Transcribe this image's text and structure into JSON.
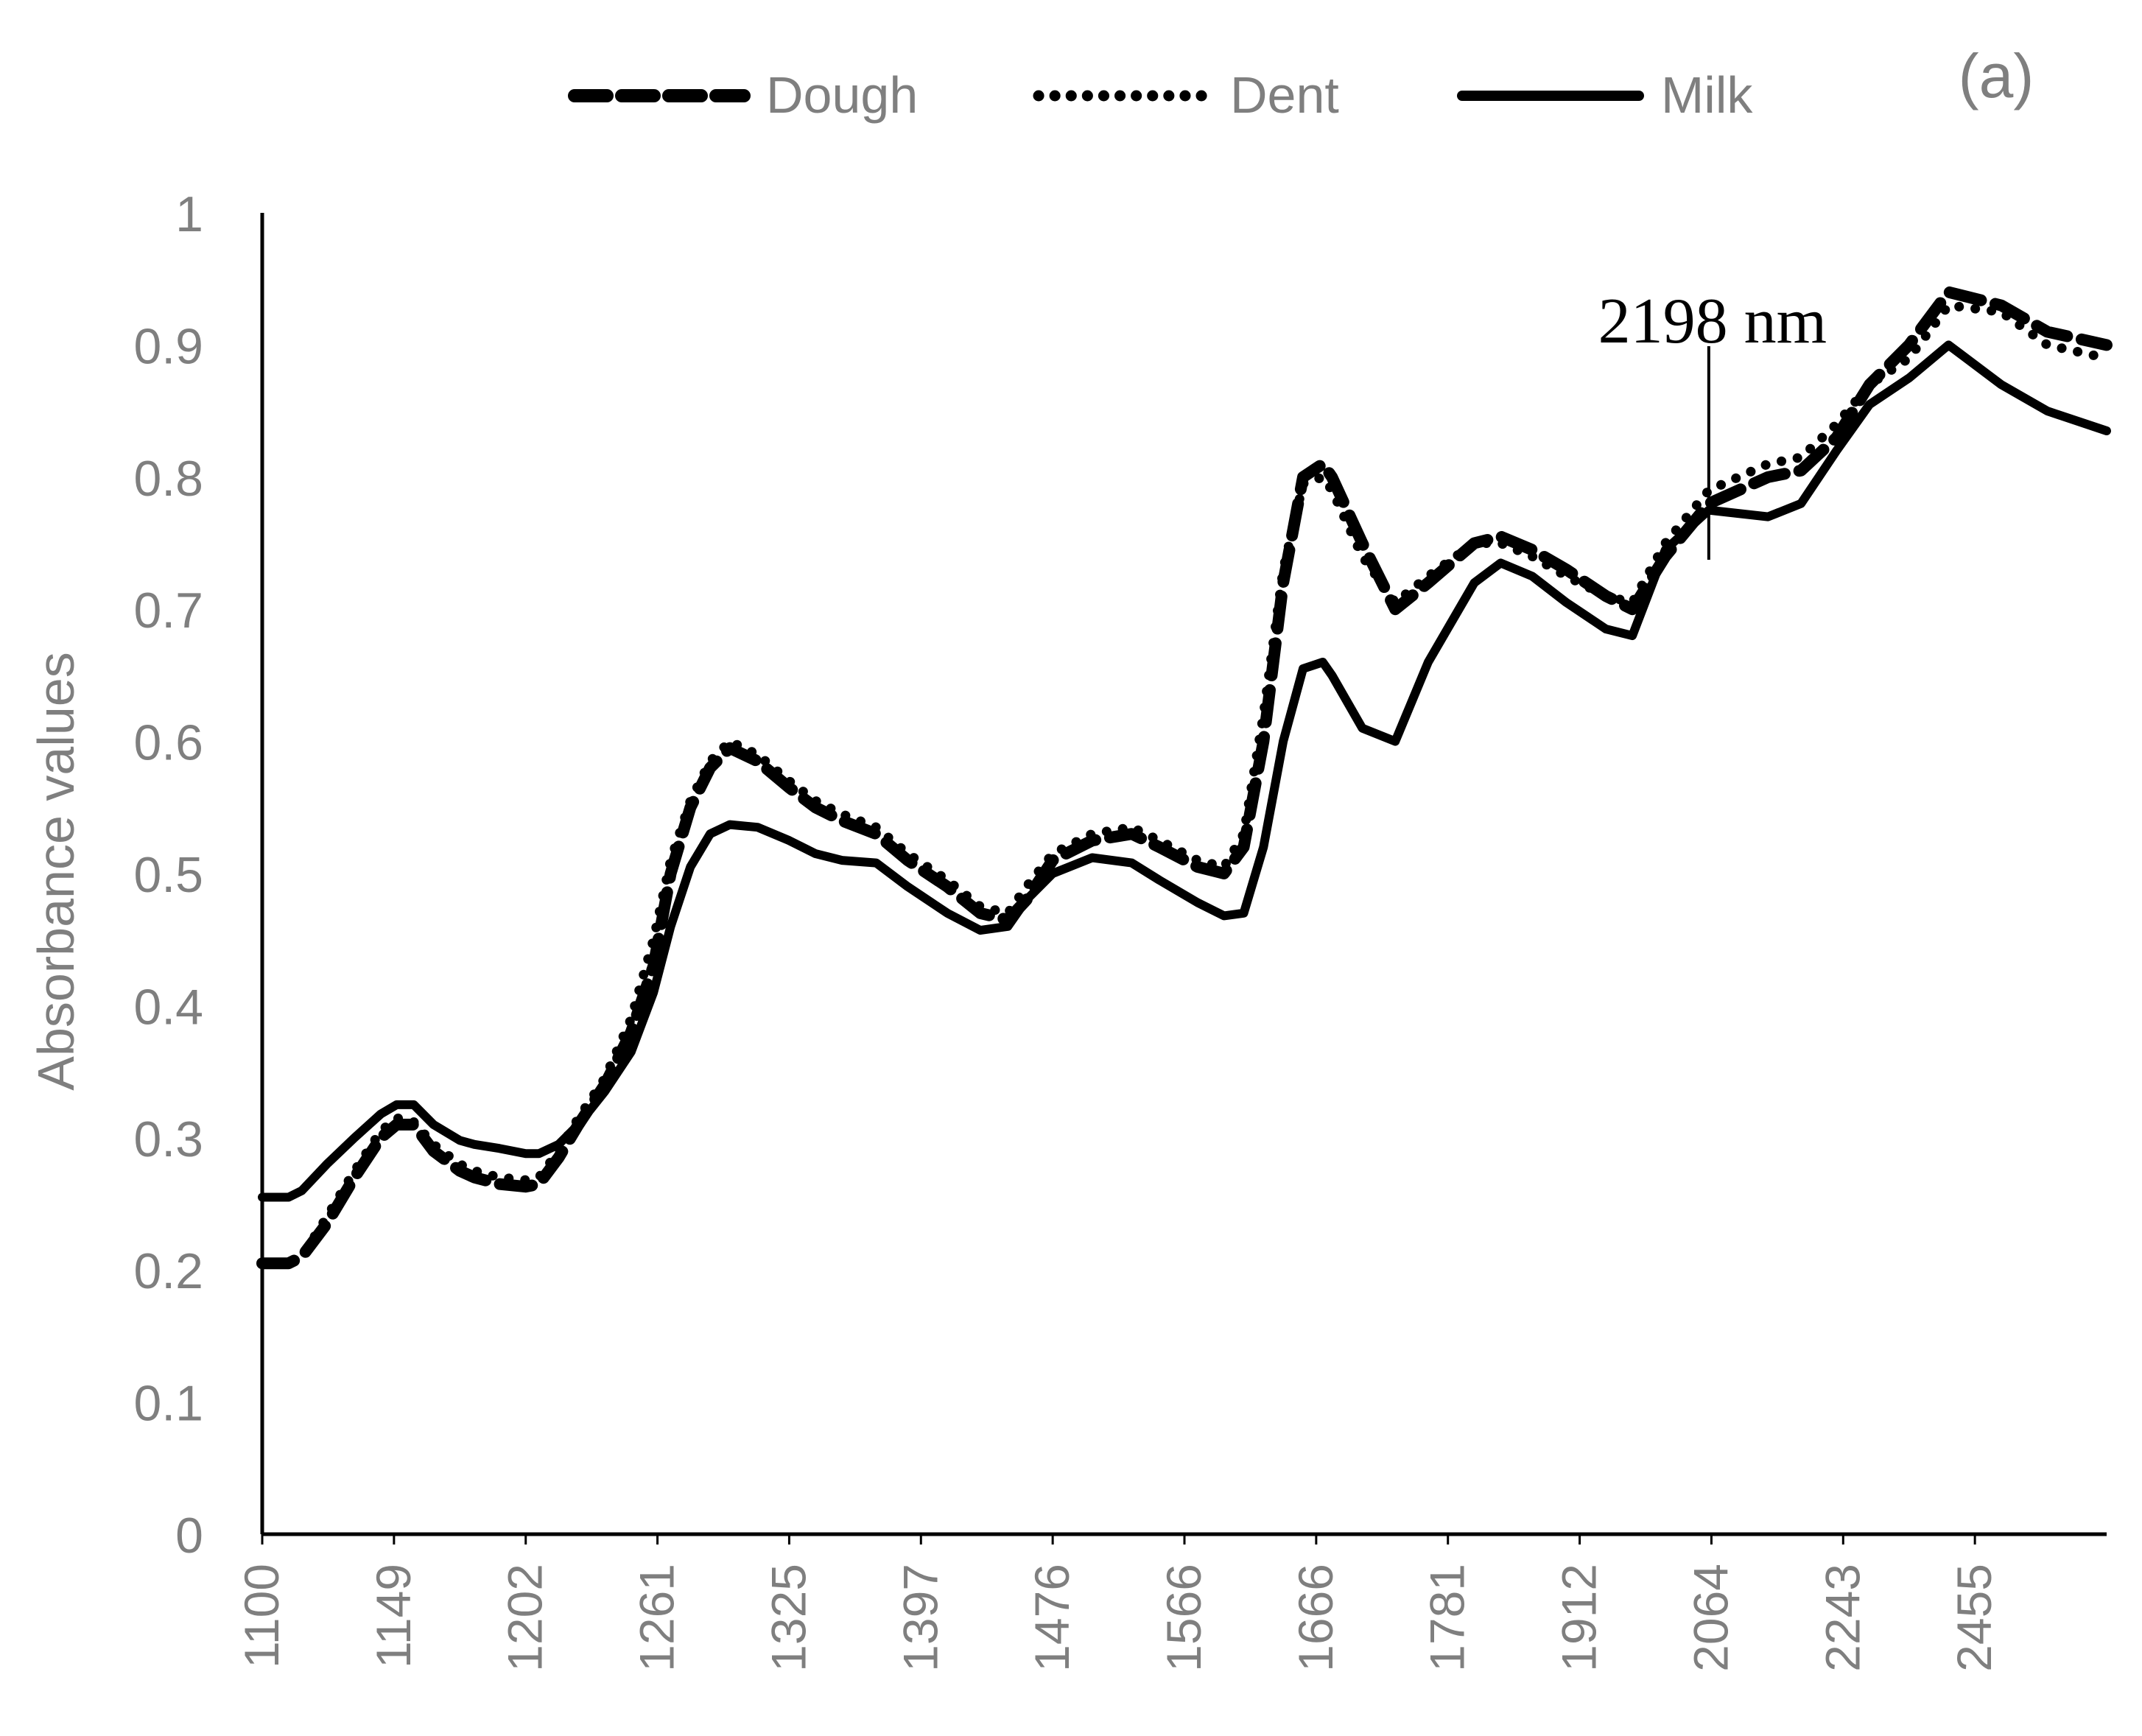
{
  "chart_data": {
    "type": "line",
    "panel_label": "(a)",
    "ylabel": "Absorbance values",
    "xlabel": "",
    "xlim": [
      1100,
      2500
    ],
    "ylim": [
      0,
      1
    ],
    "x_tick_labels": [
      "1100",
      "1149",
      "1202",
      "1261",
      "1325",
      "1397",
      "1476",
      "1566",
      "1666",
      "1781",
      "1912",
      "2064",
      "2243",
      "2455"
    ],
    "y_ticks": [
      0,
      0.1,
      0.2,
      0.3,
      0.4,
      0.5,
      0.6,
      0.7,
      0.8,
      0.9,
      1
    ],
    "y_tick_labels": [
      "0",
      "0.1",
      "0.2",
      "0.3",
      "0.4",
      "0.5",
      "0.6",
      "0.7",
      "0.8",
      "0.9",
      "1"
    ],
    "grid": false,
    "legend_position": "top",
    "annotation": {
      "text": "2198 nm",
      "x": 2198
    },
    "series": [
      {
        "name": "Dough",
        "style": "dashed",
        "color": "#000000",
        "points": [
          [
            1100,
            0.205
          ],
          [
            1120,
            0.205
          ],
          [
            1130,
            0.21
          ],
          [
            1149,
            0.235
          ],
          [
            1170,
            0.27
          ],
          [
            1190,
            0.3
          ],
          [
            1202,
            0.31
          ],
          [
            1215,
            0.31
          ],
          [
            1230,
            0.29
          ],
          [
            1250,
            0.275
          ],
          [
            1261,
            0.27
          ],
          [
            1280,
            0.265
          ],
          [
            1300,
            0.263
          ],
          [
            1310,
            0.265
          ],
          [
            1325,
            0.285
          ],
          [
            1340,
            0.31
          ],
          [
            1360,
            0.34
          ],
          [
            1380,
            0.38
          ],
          [
            1397,
            0.43
          ],
          [
            1410,
            0.5
          ],
          [
            1425,
            0.55
          ],
          [
            1440,
            0.58
          ],
          [
            1455,
            0.595
          ],
          [
            1476,
            0.585
          ],
          [
            1500,
            0.565
          ],
          [
            1520,
            0.55
          ],
          [
            1540,
            0.54
          ],
          [
            1566,
            0.53
          ],
          [
            1590,
            0.51
          ],
          [
            1620,
            0.49
          ],
          [
            1645,
            0.47
          ],
          [
            1666,
            0.465
          ],
          [
            1680,
            0.48
          ],
          [
            1700,
            0.51
          ],
          [
            1730,
            0.525
          ],
          [
            1760,
            0.53
          ],
          [
            1781,
            0.52
          ],
          [
            1810,
            0.505
          ],
          [
            1830,
            0.5
          ],
          [
            1845,
            0.52
          ],
          [
            1860,
            0.6
          ],
          [
            1875,
            0.72
          ],
          [
            1890,
            0.8
          ],
          [
            1905,
            0.81
          ],
          [
            1912,
            0.8
          ],
          [
            1935,
            0.75
          ],
          [
            1960,
            0.7
          ],
          [
            1985,
            0.72
          ],
          [
            2020,
            0.75
          ],
          [
            2040,
            0.755
          ],
          [
            2064,
            0.745
          ],
          [
            2090,
            0.73
          ],
          [
            2120,
            0.71
          ],
          [
            2140,
            0.7
          ],
          [
            2165,
            0.74
          ],
          [
            2198,
            0.78
          ],
          [
            2243,
            0.8
          ],
          [
            2268,
            0.805
          ],
          [
            2295,
            0.83
          ],
          [
            2320,
            0.87
          ],
          [
            2350,
            0.9
          ],
          [
            2380,
            0.94
          ],
          [
            2420,
            0.93
          ],
          [
            2455,
            0.91
          ],
          [
            2500,
            0.9
          ]
        ]
      },
      {
        "name": "Dent",
        "style": "dotted",
        "color": "#000000",
        "points": [
          [
            1100,
            0.205
          ],
          [
            1120,
            0.205
          ],
          [
            1130,
            0.21
          ],
          [
            1149,
            0.24
          ],
          [
            1170,
            0.275
          ],
          [
            1190,
            0.305
          ],
          [
            1202,
            0.315
          ],
          [
            1215,
            0.312
          ],
          [
            1230,
            0.295
          ],
          [
            1250,
            0.28
          ],
          [
            1261,
            0.275
          ],
          [
            1280,
            0.27
          ],
          [
            1300,
            0.268
          ],
          [
            1310,
            0.27
          ],
          [
            1325,
            0.29
          ],
          [
            1340,
            0.315
          ],
          [
            1360,
            0.345
          ],
          [
            1380,
            0.39
          ],
          [
            1397,
            0.45
          ],
          [
            1410,
            0.51
          ],
          [
            1425,
            0.555
          ],
          [
            1440,
            0.585
          ],
          [
            1455,
            0.6
          ],
          [
            1476,
            0.59
          ],
          [
            1500,
            0.57
          ],
          [
            1520,
            0.555
          ],
          [
            1540,
            0.545
          ],
          [
            1566,
            0.535
          ],
          [
            1590,
            0.515
          ],
          [
            1620,
            0.495
          ],
          [
            1645,
            0.475
          ],
          [
            1666,
            0.47
          ],
          [
            1680,
            0.49
          ],
          [
            1700,
            0.515
          ],
          [
            1730,
            0.53
          ],
          [
            1760,
            0.535
          ],
          [
            1781,
            0.525
          ],
          [
            1810,
            0.51
          ],
          [
            1830,
            0.505
          ],
          [
            1845,
            0.53
          ],
          [
            1860,
            0.62
          ],
          [
            1875,
            0.73
          ],
          [
            1890,
            0.795
          ],
          [
            1905,
            0.8
          ],
          [
            1912,
            0.79
          ],
          [
            1935,
            0.74
          ],
          [
            1960,
            0.705
          ],
          [
            1985,
            0.725
          ],
          [
            2020,
            0.75
          ],
          [
            2040,
            0.75
          ],
          [
            2064,
            0.74
          ],
          [
            2090,
            0.725
          ],
          [
            2120,
            0.71
          ],
          [
            2140,
            0.705
          ],
          [
            2165,
            0.75
          ],
          [
            2198,
            0.79
          ],
          [
            2243,
            0.81
          ],
          [
            2268,
            0.815
          ],
          [
            2295,
            0.84
          ],
          [
            2320,
            0.87
          ],
          [
            2350,
            0.89
          ],
          [
            2380,
            0.93
          ],
          [
            2420,
            0.925
          ],
          [
            2455,
            0.9
          ],
          [
            2500,
            0.89
          ]
        ]
      },
      {
        "name": "Milk",
        "style": "solid",
        "color": "#000000",
        "points": [
          [
            1100,
            0.255
          ],
          [
            1120,
            0.255
          ],
          [
            1130,
            0.26
          ],
          [
            1149,
            0.28
          ],
          [
            1170,
            0.3
          ],
          [
            1190,
            0.318
          ],
          [
            1202,
            0.325
          ],
          [
            1215,
            0.325
          ],
          [
            1230,
            0.31
          ],
          [
            1250,
            0.298
          ],
          [
            1261,
            0.295
          ],
          [
            1280,
            0.292
          ],
          [
            1300,
            0.288
          ],
          [
            1310,
            0.288
          ],
          [
            1325,
            0.295
          ],
          [
            1340,
            0.31
          ],
          [
            1360,
            0.335
          ],
          [
            1380,
            0.365
          ],
          [
            1397,
            0.41
          ],
          [
            1410,
            0.46
          ],
          [
            1425,
            0.505
          ],
          [
            1440,
            0.53
          ],
          [
            1455,
            0.537
          ],
          [
            1476,
            0.535
          ],
          [
            1500,
            0.525
          ],
          [
            1520,
            0.515
          ],
          [
            1540,
            0.51
          ],
          [
            1566,
            0.508
          ],
          [
            1590,
            0.49
          ],
          [
            1620,
            0.47
          ],
          [
            1645,
            0.457
          ],
          [
            1666,
            0.46
          ],
          [
            1680,
            0.48
          ],
          [
            1700,
            0.5
          ],
          [
            1730,
            0.512
          ],
          [
            1760,
            0.508
          ],
          [
            1781,
            0.495
          ],
          [
            1810,
            0.478
          ],
          [
            1830,
            0.468
          ],
          [
            1845,
            0.47
          ],
          [
            1860,
            0.52
          ],
          [
            1875,
            0.6
          ],
          [
            1890,
            0.655
          ],
          [
            1905,
            0.66
          ],
          [
            1912,
            0.65
          ],
          [
            1935,
            0.61
          ],
          [
            1960,
            0.6
          ],
          [
            1985,
            0.66
          ],
          [
            2020,
            0.72
          ],
          [
            2040,
            0.735
          ],
          [
            2064,
            0.725
          ],
          [
            2090,
            0.705
          ],
          [
            2120,
            0.685
          ],
          [
            2140,
            0.68
          ],
          [
            2165,
            0.745
          ],
          [
            2198,
            0.775
          ],
          [
            2243,
            0.77
          ],
          [
            2268,
            0.78
          ],
          [
            2295,
            0.82
          ],
          [
            2320,
            0.855
          ],
          [
            2350,
            0.875
          ],
          [
            2380,
            0.9
          ],
          [
            2420,
            0.87
          ],
          [
            2455,
            0.85
          ],
          [
            2500,
            0.835
          ]
        ]
      }
    ]
  }
}
